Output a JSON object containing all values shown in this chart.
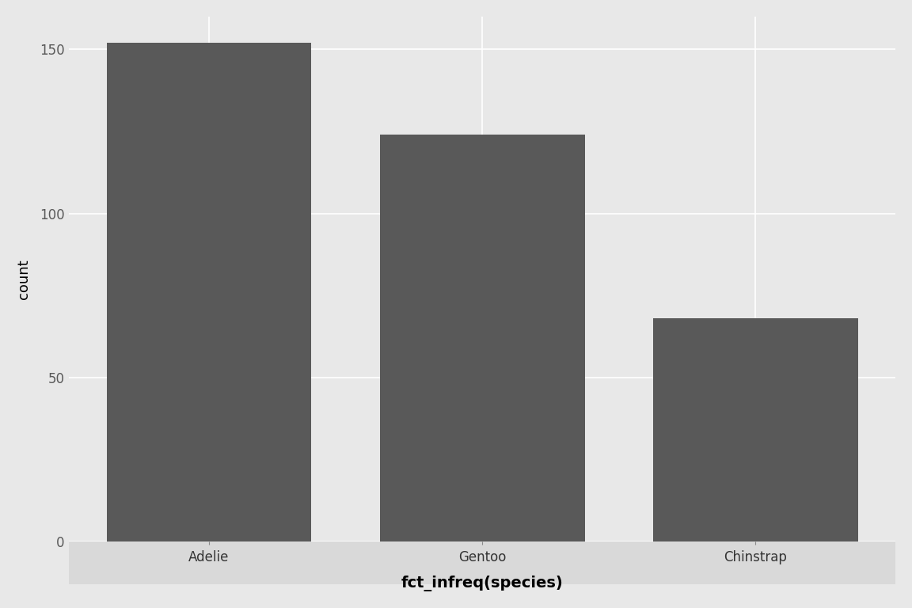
{
  "categories": [
    "Adelie",
    "Gentoo",
    "Chinstrap"
  ],
  "values": [
    152,
    124,
    68
  ],
  "bar_color": "#595959",
  "outer_background": "#E8E8E8",
  "panel_background": "#E8E8E8",
  "strip_background": "#D9D9D9",
  "grid_color": "#FFFFFF",
  "xlabel": "fct_infreq(species)",
  "ylabel": "count",
  "ylim": [
    0,
    160
  ],
  "yticks": [
    0,
    50,
    100,
    150
  ],
  "title": "",
  "xlabel_fontsize": 14,
  "ylabel_fontsize": 13,
  "tick_fontsize": 12,
  "bar_width": 0.75
}
